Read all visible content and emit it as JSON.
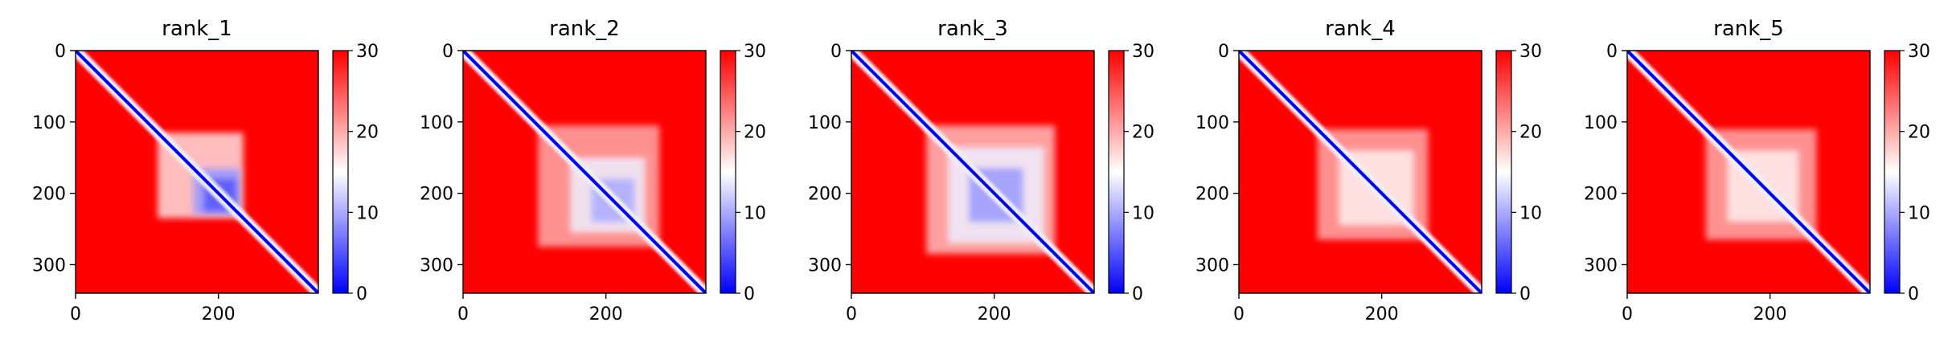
{
  "chart_data": [
    {
      "type": "heatmap",
      "title": "rank_1",
      "n": 340,
      "x_ticks": [
        0,
        200
      ],
      "y_ticks": [
        0,
        100,
        200,
        300
      ],
      "colorbar": {
        "min": 0,
        "max": 30,
        "ticks": [
          0,
          10,
          20,
          30
        ],
        "colors": [
          "#0000ff",
          "#ffffff",
          "#ff0000"
        ]
      },
      "blocks": [
        {
          "from": 115,
          "to": 235,
          "value": 17
        },
        {
          "from": 165,
          "to": 230,
          "value": 9
        },
        {
          "from": 180,
          "to": 225,
          "value": 5
        }
      ]
    },
    {
      "type": "heatmap",
      "title": "rank_2",
      "n": 340,
      "x_ticks": [
        0,
        200
      ],
      "y_ticks": [
        0,
        100,
        200,
        300
      ],
      "colorbar": {
        "min": 0,
        "max": 30,
        "ticks": [
          0,
          10,
          20,
          30
        ],
        "colors": [
          "#0000ff",
          "#ffffff",
          "#ff0000"
        ]
      },
      "blocks": [
        {
          "from": 105,
          "to": 275,
          "value": 20
        },
        {
          "from": 150,
          "to": 255,
          "value": 14
        },
        {
          "from": 180,
          "to": 240,
          "value": 10
        }
      ]
    },
    {
      "type": "heatmap",
      "title": "rank_3",
      "n": 340,
      "x_ticks": [
        0,
        200
      ],
      "y_ticks": [
        0,
        100,
        200,
        300
      ],
      "colorbar": {
        "min": 0,
        "max": 30,
        "ticks": [
          0,
          10,
          20,
          30
        ],
        "colors": [
          "#0000ff",
          "#ffffff",
          "#ff0000"
        ]
      },
      "blocks": [
        {
          "from": 105,
          "to": 285,
          "value": 19
        },
        {
          "from": 135,
          "to": 270,
          "value": 14
        },
        {
          "from": 165,
          "to": 240,
          "value": 9
        }
      ]
    },
    {
      "type": "heatmap",
      "title": "rank_4",
      "n": 340,
      "x_ticks": [
        0,
        200
      ],
      "y_ticks": [
        0,
        100,
        200,
        300
      ],
      "colorbar": {
        "min": 0,
        "max": 30,
        "ticks": [
          0,
          10,
          20,
          30
        ],
        "colors": [
          "#0000ff",
          "#ffffff",
          "#ff0000"
        ]
      },
      "blocks": [
        {
          "from": 110,
          "to": 265,
          "value": 20
        },
        {
          "from": 140,
          "to": 245,
          "value": 16
        }
      ]
    },
    {
      "type": "heatmap",
      "title": "rank_5",
      "n": 340,
      "x_ticks": [
        0,
        200
      ],
      "y_ticks": [
        0,
        100,
        200,
        300
      ],
      "colorbar": {
        "min": 0,
        "max": 30,
        "ticks": [
          0,
          10,
          20,
          30
        ],
        "colors": [
          "#0000ff",
          "#ffffff",
          "#ff0000"
        ]
      },
      "blocks": [
        {
          "from": 110,
          "to": 265,
          "value": 20
        },
        {
          "from": 140,
          "to": 240,
          "value": 16
        }
      ]
    }
  ]
}
